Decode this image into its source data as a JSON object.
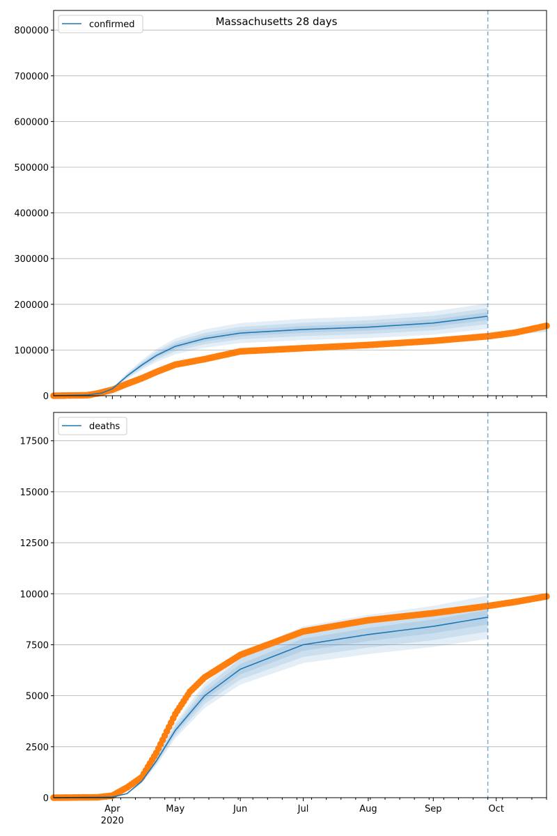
{
  "title": "Massachusetts 28 days",
  "colors": {
    "model": "#1f77b4",
    "observed": "#ff7f0e",
    "grid": "#b0b0b0",
    "divider": "#1f77b4"
  },
  "chart_data": [
    {
      "type": "line",
      "name": "confirmed",
      "legend": {
        "label": "confirmed",
        "placement": "top-left"
      },
      "xlim": [
        "2020-03-04",
        "2020-10-25"
      ],
      "ylim": [
        0,
        843000
      ],
      "yticks": [
        0,
        100000,
        200000,
        300000,
        400000,
        500000,
        600000,
        700000,
        800000
      ],
      "ytick_labels": [
        "0",
        "100000",
        "200000",
        "300000",
        "400000",
        "500000",
        "600000",
        "700000",
        "800000"
      ],
      "grid": "y",
      "forecast_start": "2020-09-27",
      "model": [
        [
          "2020-03-04",
          0
        ],
        [
          "2020-03-20",
          1500
        ],
        [
          "2020-03-27",
          6000
        ],
        [
          "2020-04-01",
          15000
        ],
        [
          "2020-04-08",
          43000
        ],
        [
          "2020-04-15",
          67000
        ],
        [
          "2020-04-22",
          88000
        ],
        [
          "2020-05-01",
          108000
        ],
        [
          "2020-05-15",
          125000
        ],
        [
          "2020-06-01",
          137000
        ],
        [
          "2020-07-01",
          145000
        ],
        [
          "2020-08-01",
          150000
        ],
        [
          "2020-09-01",
          159000
        ],
        [
          "2020-09-27",
          174000
        ]
      ],
      "model_bands_rel_halfwidth": [
        0.16,
        0.1,
        0.05
      ],
      "forecast_band": [
        [
          "2020-09-27",
          128000,
          136000
        ],
        [
          "2020-10-25",
          140000,
          156000
        ]
      ],
      "observed": [
        [
          "2020-03-04",
          0
        ],
        [
          "2020-03-20",
          1000
        ],
        [
          "2020-03-25",
          5000
        ],
        [
          "2020-04-01",
          13000
        ],
        [
          "2020-04-08",
          26000
        ],
        [
          "2020-04-15",
          38000
        ],
        [
          "2020-04-22",
          52000
        ],
        [
          "2020-05-01",
          68000
        ],
        [
          "2020-05-15",
          80000
        ],
        [
          "2020-06-01",
          97000
        ],
        [
          "2020-07-01",
          104000
        ],
        [
          "2020-08-01",
          111000
        ],
        [
          "2020-09-01",
          120000
        ],
        [
          "2020-09-27",
          130000
        ],
        [
          "2020-10-10",
          138000
        ],
        [
          "2020-10-25",
          153000
        ]
      ]
    },
    {
      "type": "line",
      "name": "deaths",
      "legend": {
        "label": "deaths",
        "placement": "top-left"
      },
      "xlim": [
        "2020-03-04",
        "2020-10-25"
      ],
      "ylim": [
        0,
        18890
      ],
      "yticks": [
        0,
        2500,
        5000,
        7500,
        10000,
        12500,
        15000,
        17500
      ],
      "ytick_labels": [
        "0",
        "2500",
        "5000",
        "7500",
        "10000",
        "12500",
        "15000",
        "17500"
      ],
      "grid": "y",
      "forecast_start": "2020-09-27",
      "xtick_labels": [
        {
          "date": "2020-04-01",
          "label": "Apr",
          "sub": "2020"
        },
        {
          "date": "2020-05-01",
          "label": "May"
        },
        {
          "date": "2020-06-01",
          "label": "Jun"
        },
        {
          "date": "2020-07-01",
          "label": "Jul"
        },
        {
          "date": "2020-08-01",
          "label": "Aug"
        },
        {
          "date": "2020-09-01",
          "label": "Sep"
        },
        {
          "date": "2020-10-01",
          "label": "Oct"
        }
      ],
      "model": [
        [
          "2020-03-04",
          0
        ],
        [
          "2020-04-01",
          30
        ],
        [
          "2020-04-08",
          200
        ],
        [
          "2020-04-15",
          800
        ],
        [
          "2020-04-22",
          1800
        ],
        [
          "2020-05-01",
          3300
        ],
        [
          "2020-05-15",
          5000
        ],
        [
          "2020-06-01",
          6300
        ],
        [
          "2020-07-01",
          7500
        ],
        [
          "2020-08-01",
          8000
        ],
        [
          "2020-09-01",
          8400
        ],
        [
          "2020-09-27",
          8850
        ]
      ],
      "model_bands_rel_halfwidth": [
        0.12,
        0.08,
        0.04
      ],
      "observed": [
        [
          "2020-03-04",
          0
        ],
        [
          "2020-03-25",
          20
        ],
        [
          "2020-04-01",
          100
        ],
        [
          "2020-04-08",
          500
        ],
        [
          "2020-04-15",
          1000
        ],
        [
          "2020-04-22",
          2200
        ],
        [
          "2020-05-01",
          4100
        ],
        [
          "2020-05-08",
          5200
        ],
        [
          "2020-05-15",
          5900
        ],
        [
          "2020-06-01",
          7000
        ],
        [
          "2020-07-01",
          8150
        ],
        [
          "2020-08-01",
          8700
        ],
        [
          "2020-09-01",
          9050
        ],
        [
          "2020-09-27",
          9400
        ],
        [
          "2020-10-10",
          9600
        ],
        [
          "2020-10-25",
          9870
        ]
      ]
    }
  ]
}
